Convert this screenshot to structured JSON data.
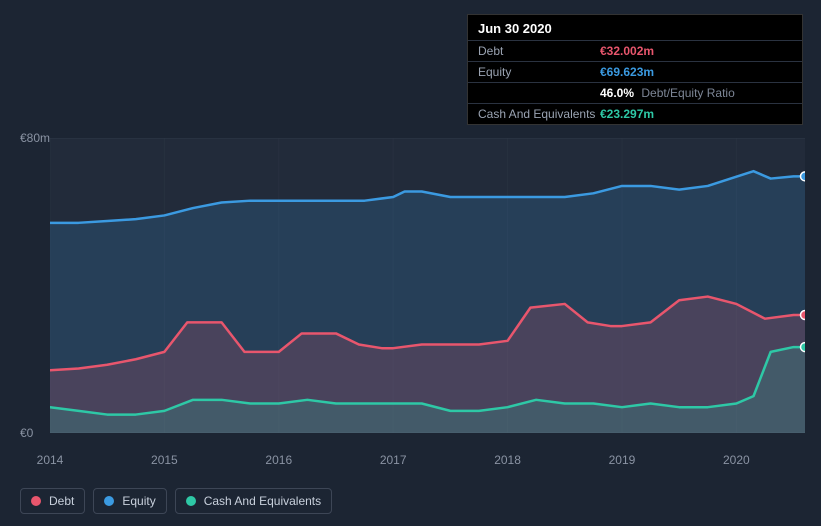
{
  "tooltip": {
    "date": "Jun 30 2020",
    "rows": {
      "debt": {
        "label": "Debt",
        "value": "€32.002m"
      },
      "equity": {
        "label": "Equity",
        "value": "€69.623m"
      },
      "ratio": {
        "label": "",
        "value": "46.0%",
        "suffix": "Debt/Equity Ratio"
      },
      "cash": {
        "label": "Cash And Equivalents",
        "value": "€23.297m"
      }
    }
  },
  "chart": {
    "type": "area",
    "background_color": "#1c2533",
    "plot_bg": "#222b3a",
    "grid_color": "#2f3948",
    "ylim": [
      0,
      80
    ],
    "yticks": [
      {
        "v": 80,
        "label": "€80m"
      },
      {
        "v": 0,
        "label": "€0"
      }
    ],
    "x_domain": [
      2014,
      2020.6
    ],
    "xticks": [
      {
        "v": 2014,
        "label": "2014"
      },
      {
        "v": 2015,
        "label": "2015"
      },
      {
        "v": 2016,
        "label": "2016"
      },
      {
        "v": 2017,
        "label": "2017"
      },
      {
        "v": 2018,
        "label": "2018"
      },
      {
        "v": 2019,
        "label": "2019"
      },
      {
        "v": 2020,
        "label": "2020"
      }
    ],
    "series": [
      {
        "id": "equity",
        "label": "Equity",
        "color": "#3b9ae1",
        "fill": "rgba(59,154,225,0.18)",
        "line_width": 2.5,
        "marker_end": true,
        "data": [
          [
            2014.0,
            57
          ],
          [
            2014.25,
            57
          ],
          [
            2014.5,
            57.5
          ],
          [
            2014.75,
            58
          ],
          [
            2015.0,
            59
          ],
          [
            2015.25,
            61
          ],
          [
            2015.5,
            62.5
          ],
          [
            2015.75,
            63
          ],
          [
            2016.0,
            63
          ],
          [
            2016.25,
            63
          ],
          [
            2016.5,
            63
          ],
          [
            2016.75,
            63
          ],
          [
            2017.0,
            64
          ],
          [
            2017.1,
            65.5
          ],
          [
            2017.25,
            65.5
          ],
          [
            2017.5,
            64
          ],
          [
            2017.75,
            64
          ],
          [
            2018.0,
            64
          ],
          [
            2018.25,
            64
          ],
          [
            2018.5,
            64
          ],
          [
            2018.75,
            65
          ],
          [
            2019.0,
            67
          ],
          [
            2019.25,
            67
          ],
          [
            2019.5,
            66
          ],
          [
            2019.75,
            67
          ],
          [
            2020.0,
            69.5
          ],
          [
            2020.15,
            71
          ],
          [
            2020.3,
            69
          ],
          [
            2020.5,
            69.6
          ],
          [
            2020.6,
            69.6
          ]
        ]
      },
      {
        "id": "debt",
        "label": "Debt",
        "color": "#e8566d",
        "fill": "rgba(232,86,109,0.18)",
        "line_width": 2.5,
        "marker_end": true,
        "data": [
          [
            2014.0,
            17
          ],
          [
            2014.25,
            17.5
          ],
          [
            2014.5,
            18.5
          ],
          [
            2014.75,
            20
          ],
          [
            2015.0,
            22
          ],
          [
            2015.2,
            30
          ],
          [
            2015.5,
            30
          ],
          [
            2015.7,
            22
          ],
          [
            2015.9,
            22
          ],
          [
            2016.0,
            22
          ],
          [
            2016.2,
            27
          ],
          [
            2016.5,
            27
          ],
          [
            2016.7,
            24
          ],
          [
            2016.9,
            23
          ],
          [
            2017.0,
            23
          ],
          [
            2017.25,
            24
          ],
          [
            2017.5,
            24
          ],
          [
            2017.75,
            24
          ],
          [
            2018.0,
            25
          ],
          [
            2018.2,
            34
          ],
          [
            2018.5,
            35
          ],
          [
            2018.7,
            30
          ],
          [
            2018.9,
            29
          ],
          [
            2019.0,
            29
          ],
          [
            2019.25,
            30
          ],
          [
            2019.5,
            36
          ],
          [
            2019.75,
            37
          ],
          [
            2020.0,
            35
          ],
          [
            2020.25,
            31
          ],
          [
            2020.5,
            32
          ],
          [
            2020.6,
            32
          ]
        ]
      },
      {
        "id": "cash",
        "label": "Cash And Equivalents",
        "color": "#2ec8a6",
        "fill": "rgba(46,200,166,0.18)",
        "line_width": 2.5,
        "marker_end": true,
        "data": [
          [
            2014.0,
            7
          ],
          [
            2014.25,
            6
          ],
          [
            2014.5,
            5
          ],
          [
            2014.75,
            5
          ],
          [
            2015.0,
            6
          ],
          [
            2015.25,
            9
          ],
          [
            2015.5,
            9
          ],
          [
            2015.75,
            8
          ],
          [
            2016.0,
            8
          ],
          [
            2016.25,
            9
          ],
          [
            2016.5,
            8
          ],
          [
            2016.75,
            8
          ],
          [
            2017.0,
            8
          ],
          [
            2017.25,
            8
          ],
          [
            2017.5,
            6
          ],
          [
            2017.75,
            6
          ],
          [
            2018.0,
            7
          ],
          [
            2018.25,
            9
          ],
          [
            2018.5,
            8
          ],
          [
            2018.75,
            8
          ],
          [
            2019.0,
            7
          ],
          [
            2019.25,
            8
          ],
          [
            2019.5,
            7
          ],
          [
            2019.75,
            7
          ],
          [
            2020.0,
            8
          ],
          [
            2020.15,
            10
          ],
          [
            2020.3,
            22
          ],
          [
            2020.5,
            23.3
          ],
          [
            2020.6,
            23.3
          ]
        ]
      }
    ],
    "legend": [
      {
        "id": "debt",
        "label": "Debt",
        "color": "#e8566d"
      },
      {
        "id": "equity",
        "label": "Equity",
        "color": "#3b9ae1"
      },
      {
        "id": "cash",
        "label": "Cash And Equivalents",
        "color": "#2ec8a6"
      }
    ]
  }
}
